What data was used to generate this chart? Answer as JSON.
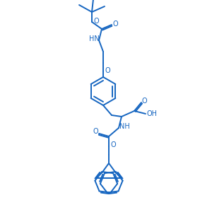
{
  "color": "#1565c0",
  "bg_color": "#ffffff",
  "lw": 1.4,
  "figsize": [
    3.0,
    3.0
  ],
  "dpi": 100,
  "xlim": [
    0,
    300
  ],
  "ylim": [
    0,
    300
  ]
}
